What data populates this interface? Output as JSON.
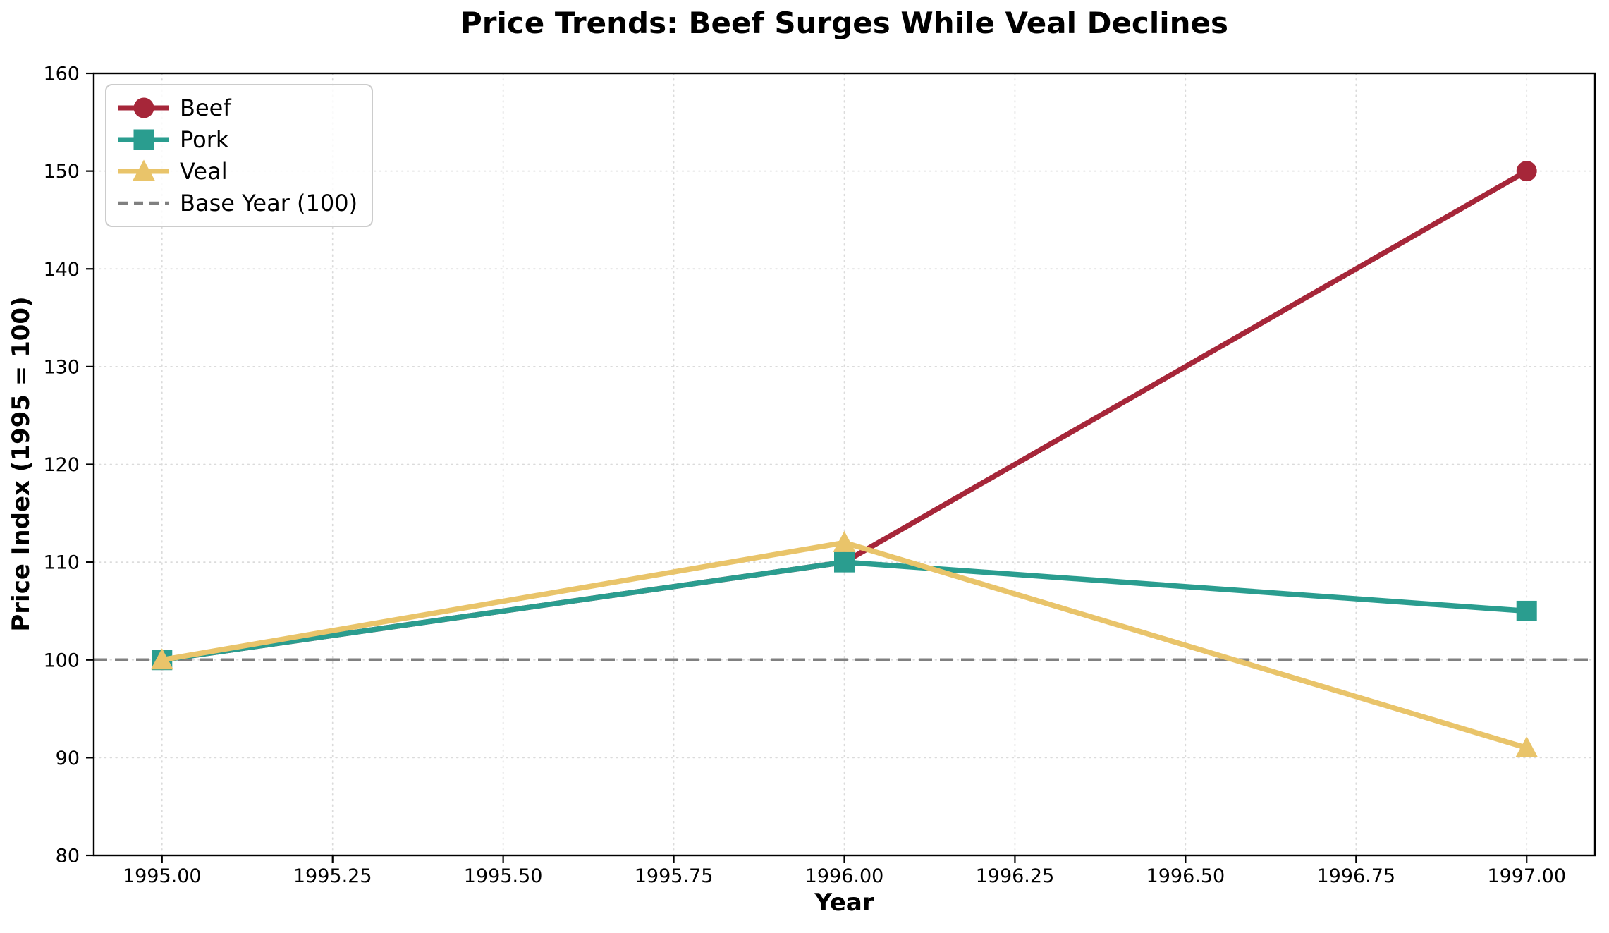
{
  "chart_data": {
    "type": "line",
    "title": "Price Trends: Beef Surges While Veal Declines",
    "xlabel": "Year",
    "ylabel": "Price Index (1995 = 100)",
    "x": [
      1995,
      1996,
      1997
    ],
    "series": [
      {
        "name": "Beef",
        "color": "#A62639",
        "marker": "circle",
        "values": [
          100,
          110,
          150
        ]
      },
      {
        "name": "Pork",
        "color": "#2A9D8F",
        "marker": "square",
        "values": [
          100,
          110,
          105
        ]
      },
      {
        "name": "Veal",
        "color": "#E9C46A",
        "marker": "triangle",
        "values": [
          100,
          112,
          91
        ]
      }
    ],
    "baseline": {
      "label": "Base Year (100)",
      "value": 100,
      "color": "#808080",
      "dash": true
    },
    "xlim": [
      1994.9,
      1997.1
    ],
    "ylim": [
      80,
      160
    ],
    "xticks": {
      "values": [
        1995,
        1995.25,
        1995.5,
        1995.75,
        1996,
        1996.25,
        1996.5,
        1996.75,
        1997
      ],
      "labels": [
        "1995.00",
        "1995.25",
        "1995.50",
        "1995.75",
        "1996.00",
        "1996.25",
        "1996.50",
        "1996.75",
        "1997.00"
      ]
    },
    "yticks": {
      "values": [
        80,
        90,
        100,
        110,
        120,
        130,
        140,
        150,
        160
      ],
      "labels": [
        "80",
        "90",
        "100",
        "110",
        "120",
        "130",
        "140",
        "150",
        "160"
      ]
    },
    "grid": true,
    "grid_color": "#DBDBDB",
    "spine_color": "#000000",
    "tick_label_color": "#000000",
    "legend_position": "upper left",
    "legend_entries": [
      "Beef",
      "Pork",
      "Veal",
      "Base Year (100)"
    ]
  }
}
